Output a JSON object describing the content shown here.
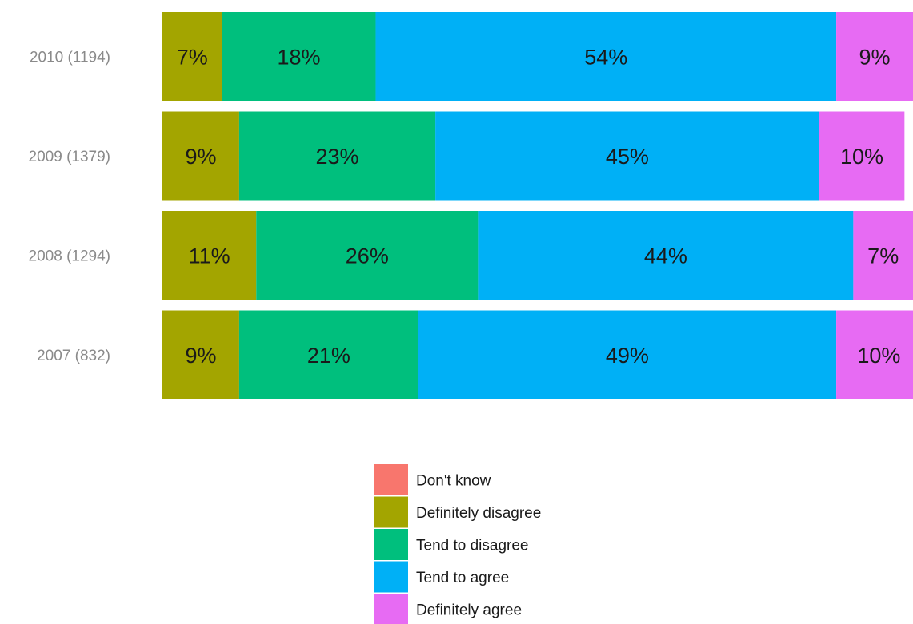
{
  "chart_data": {
    "type": "bar",
    "orientation": "horizontal",
    "stacked": true,
    "categories": [
      "2010 (1194)",
      "2009 (1379)",
      "2008 (1294)",
      "2007 (832)"
    ],
    "series": [
      {
        "name": "Don't know",
        "color": "#F8766D",
        "values": [
          0,
          0,
          0,
          0
        ],
        "labels": [
          "",
          "",
          "",
          ""
        ]
      },
      {
        "name": "Definitely disagree",
        "color": "#A3A500",
        "values": [
          7,
          9,
          11,
          9
        ],
        "labels": [
          "7%",
          "9%",
          "11%",
          "9%"
        ]
      },
      {
        "name": "Tend to disagree",
        "color": "#00BF7D",
        "values": [
          18,
          23,
          26,
          21
        ],
        "labels": [
          "18%",
          "23%",
          "26%",
          "21%"
        ]
      },
      {
        "name": "Tend to agree",
        "color": "#00B0F6",
        "values": [
          54,
          45,
          44,
          49
        ],
        "labels": [
          "54%",
          "45%",
          "44%",
          "49%"
        ]
      },
      {
        "name": "Definitely agree",
        "color": "#E76BF3",
        "values": [
          9,
          10,
          7,
          10
        ],
        "labels": [
          "9%",
          "10%",
          "7%",
          "10%"
        ]
      }
    ],
    "xlim": [
      0,
      88
    ],
    "grid": false,
    "legend_position": "bottom"
  }
}
